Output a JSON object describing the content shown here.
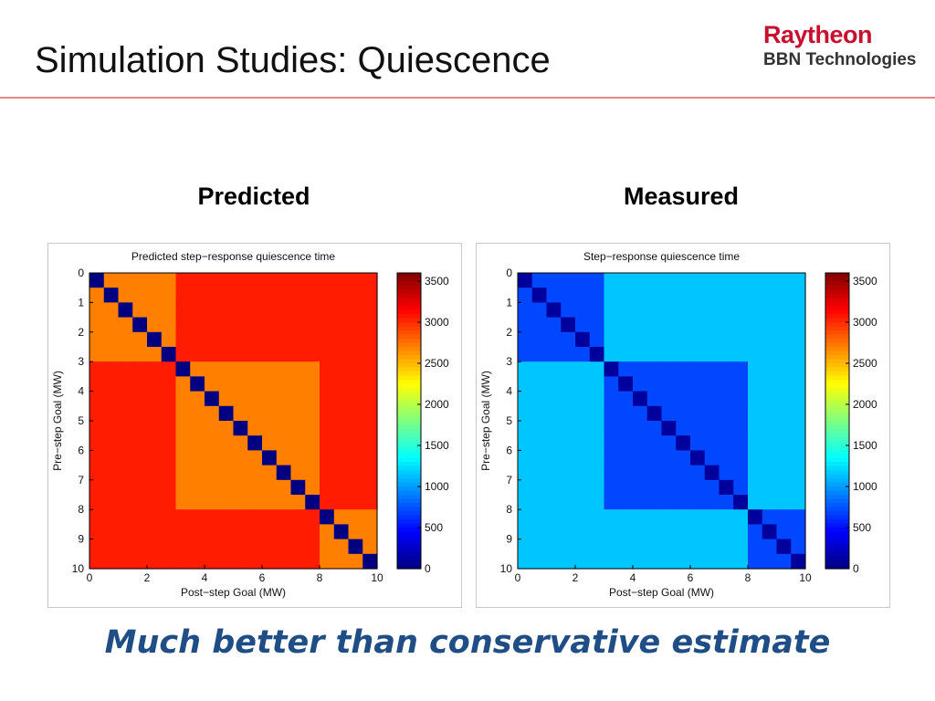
{
  "slide": {
    "title": "Simulation Studies: Quiescence",
    "logo": {
      "line1": "Raytheon",
      "line2": "BBN Technologies"
    },
    "caption": "Much better than conservative estimate"
  },
  "panels": [
    {
      "heading": "Predicted"
    },
    {
      "heading": "Measured"
    }
  ],
  "chart_data": [
    {
      "type": "heatmap",
      "title": "Predicted step−response quiescence time",
      "xlabel": "Post−step Goal (MW)",
      "ylabel": "Pre−step Goal (MW)",
      "x_ticks": [
        "0",
        "2",
        "4",
        "6",
        "8",
        "10"
      ],
      "y_ticks": [
        "0",
        "1",
        "2",
        "3",
        "4",
        "5",
        "6",
        "7",
        "8",
        "9",
        "10"
      ],
      "xlim": [
        0,
        10
      ],
      "ylim": [
        0,
        10
      ],
      "y_reversed": true,
      "colorbar": {
        "min": 0,
        "max": 3600,
        "ticks": [
          "0",
          "500",
          "1000",
          "1500",
          "2000",
          "2500",
          "3000",
          "3500"
        ]
      },
      "grid_step": 0.5,
      "regions_description_values": {
        "diagonal": 0,
        "orange_zone": 2700,
        "red_zone": 3050,
        "boundary_rows": [
          3,
          8
        ],
        "red_x_ranges_for_y_0_3": [
          [
            3,
            10
          ]
        ],
        "red_x_ranges_for_y_3_8": [
          [
            0,
            3
          ],
          [
            8,
            10
          ]
        ],
        "red_x_ranges_for_y_8_10": [
          [
            0,
            8
          ]
        ]
      }
    },
    {
      "type": "heatmap",
      "title": "Step−response quiescence time",
      "xlabel": "Post−step Goal (MW)",
      "ylabel": "Pre−step Goal (MW)",
      "x_ticks": [
        "0",
        "2",
        "4",
        "6",
        "8",
        "10"
      ],
      "y_ticks": [
        "0",
        "1",
        "2",
        "3",
        "4",
        "5",
        "6",
        "7",
        "8",
        "9",
        "10"
      ],
      "xlim": [
        0,
        10
      ],
      "ylim": [
        0,
        10
      ],
      "y_reversed": true,
      "colorbar": {
        "min": 0,
        "max": 3600,
        "ticks": [
          "0",
          "500",
          "1000",
          "1500",
          "2000",
          "2500",
          "3000",
          "3500"
        ]
      },
      "grid_step": 0.5,
      "regions_description_values": {
        "diagonal": 100,
        "background": 700,
        "light_zone": 1150,
        "boundary_rows": [
          3,
          8
        ],
        "light_x_ranges_for_y_0_3": [
          [
            3,
            10
          ]
        ],
        "light_x_ranges_for_y_3_8": [
          [
            0,
            3
          ],
          [
            8,
            10
          ]
        ],
        "light_x_ranges_for_y_8_10": [
          [
            0,
            3
          ],
          [
            3,
            8
          ]
        ]
      }
    }
  ]
}
